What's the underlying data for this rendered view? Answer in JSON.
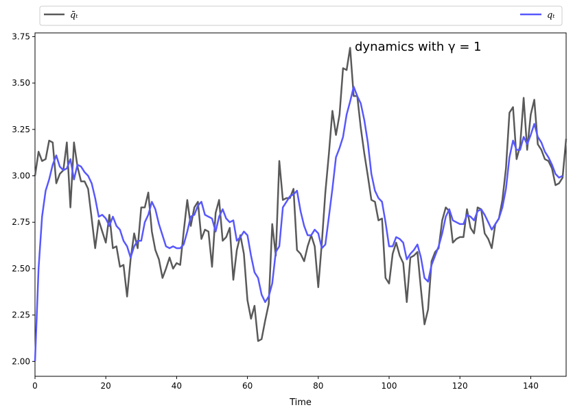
{
  "chart_data": {
    "type": "line",
    "title": "",
    "xlabel": "Time",
    "ylabel": "",
    "xlim": [
      0,
      150
    ],
    "ylim": [
      1.92,
      3.77
    ],
    "x_ticks": [
      0,
      20,
      40,
      60,
      80,
      100,
      120,
      140
    ],
    "y_ticks": [
      2.0,
      2.25,
      2.5,
      2.75,
      3.0,
      3.25,
      3.5,
      3.75
    ],
    "x_tick_labels": [
      "0",
      "20",
      "40",
      "60",
      "80",
      "100",
      "120",
      "140"
    ],
    "y_tick_labels": [
      "2.00",
      "2.25",
      "2.50",
      "2.75",
      "3.00",
      "3.25",
      "3.50",
      "3.75"
    ],
    "grid": false,
    "legend": "top, outside plot, two columns",
    "annotation": {
      "text": "dynamics with γ = 1",
      "x": 90,
      "y": 3.69
    },
    "series": [
      {
        "name": "q̄ₜ",
        "color": "#595959",
        "values": [
          3.0,
          3.13,
          3.08,
          3.09,
          3.19,
          3.18,
          2.96,
          3.01,
          3.03,
          3.18,
          2.83,
          3.18,
          3.05,
          2.97,
          2.97,
          2.93,
          2.77,
          2.61,
          2.76,
          2.7,
          2.64,
          2.79,
          2.61,
          2.62,
          2.51,
          2.52,
          2.35,
          2.55,
          2.69,
          2.61,
          2.83,
          2.83,
          2.91,
          2.7,
          2.6,
          2.55,
          2.45,
          2.5,
          2.56,
          2.5,
          2.53,
          2.52,
          2.7,
          2.87,
          2.73,
          2.83,
          2.86,
          2.66,
          2.71,
          2.7,
          2.51,
          2.8,
          2.87,
          2.65,
          2.67,
          2.72,
          2.44,
          2.6,
          2.68,
          2.58,
          2.33,
          2.23,
          2.3,
          2.11,
          2.12,
          2.22,
          2.31,
          2.74,
          2.57,
          3.08,
          2.87,
          2.88,
          2.88,
          2.93,
          2.6,
          2.58,
          2.54,
          2.62,
          2.68,
          2.62,
          2.4,
          2.64,
          2.91,
          3.12,
          3.35,
          3.22,
          3.33,
          3.58,
          3.57,
          3.69,
          3.43,
          3.43,
          3.26,
          3.12,
          3.0,
          2.87,
          2.86,
          2.76,
          2.77,
          2.45,
          2.42,
          2.58,
          2.64,
          2.57,
          2.53,
          2.32,
          2.56,
          2.57,
          2.59,
          2.39,
          2.2,
          2.28,
          2.54,
          2.59,
          2.61,
          2.76,
          2.83,
          2.81,
          2.64,
          2.66,
          2.67,
          2.67,
          2.82,
          2.72,
          2.69,
          2.83,
          2.82,
          2.69,
          2.66,
          2.61,
          2.74,
          2.77,
          2.87,
          3.04,
          3.34,
          3.37,
          3.09,
          3.16,
          3.42,
          3.14,
          3.33,
          3.41,
          3.17,
          3.14,
          3.09,
          3.08,
          3.04,
          2.95,
          2.96,
          2.99,
          3.2
        ]
      },
      {
        "name": "qₜ",
        "color": "#5757ff",
        "values": [
          2.0,
          2.5,
          2.78,
          2.92,
          2.98,
          3.06,
          3.11,
          3.05,
          3.03,
          3.04,
          3.09,
          2.98,
          3.06,
          3.05,
          3.02,
          3.0,
          2.96,
          2.88,
          2.78,
          2.79,
          2.77,
          2.73,
          2.78,
          2.73,
          2.71,
          2.65,
          2.62,
          2.56,
          2.62,
          2.65,
          2.65,
          2.75,
          2.79,
          2.86,
          2.82,
          2.74,
          2.68,
          2.62,
          2.61,
          2.62,
          2.61,
          2.61,
          2.63,
          2.7,
          2.78,
          2.79,
          2.84,
          2.86,
          2.79,
          2.78,
          2.77,
          2.7,
          2.78,
          2.82,
          2.77,
          2.75,
          2.76,
          2.65,
          2.67,
          2.7,
          2.68,
          2.57,
          2.48,
          2.45,
          2.36,
          2.32,
          2.35,
          2.42,
          2.59,
          2.62,
          2.83,
          2.86,
          2.89,
          2.9,
          2.92,
          2.81,
          2.73,
          2.68,
          2.68,
          2.71,
          2.69,
          2.61,
          2.63,
          2.78,
          2.93,
          3.1,
          3.15,
          3.21,
          3.33,
          3.4,
          3.48,
          3.43,
          3.39,
          3.3,
          3.18,
          3.01,
          2.92,
          2.88,
          2.86,
          2.75,
          2.62,
          2.62,
          2.67,
          2.66,
          2.64,
          2.55,
          2.58,
          2.6,
          2.63,
          2.56,
          2.45,
          2.43,
          2.52,
          2.57,
          2.62,
          2.69,
          2.78,
          2.82,
          2.76,
          2.75,
          2.74,
          2.74,
          2.79,
          2.78,
          2.76,
          2.81,
          2.82,
          2.79,
          2.75,
          2.71,
          2.74,
          2.77,
          2.83,
          2.93,
          3.1,
          3.19,
          3.14,
          3.14,
          3.21,
          3.17,
          3.22,
          3.28,
          3.21,
          3.18,
          3.13,
          3.1,
          3.06,
          3.01,
          2.99,
          3.0
        ]
      }
    ]
  }
}
